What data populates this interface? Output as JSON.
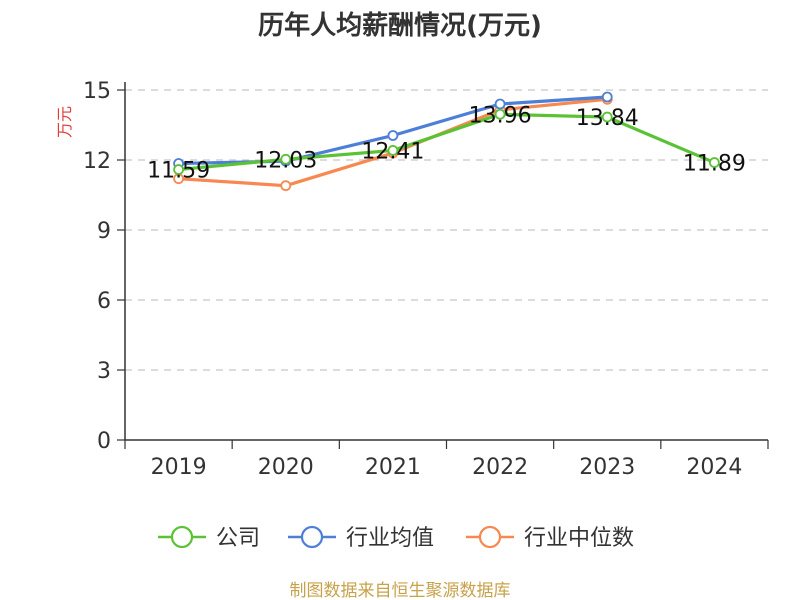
{
  "chart_data": {
    "type": "line",
    "title": "历年人均薪酬情况(万元)",
    "ylabel": "万元",
    "xlabel": "",
    "categories": [
      "2019",
      "2020",
      "2021",
      "2022",
      "2023",
      "2024"
    ],
    "ylim": [
      0,
      15
    ],
    "yticks": [
      0,
      3,
      6,
      9,
      12,
      15
    ],
    "grid": true,
    "legend_position": "bottom",
    "series": [
      {
        "name": "公司",
        "color": "#5bc236",
        "values": [
          11.59,
          12.03,
          12.41,
          13.96,
          13.84,
          11.89
        ],
        "labels": [
          "11.59",
          "12.03",
          "12.41",
          "13.96",
          "13.84",
          "11.89"
        ]
      },
      {
        "name": "行业均值",
        "color": "#4e7fd6",
        "values": [
          11.85,
          11.95,
          13.05,
          14.4,
          14.7,
          null
        ],
        "labels": []
      },
      {
        "name": "行业中位数",
        "color": "#f7884f",
        "values": [
          11.2,
          10.9,
          12.3,
          14.15,
          14.6,
          null
        ],
        "labels": []
      }
    ]
  },
  "source": "制图数据来自恒生聚源数据库"
}
